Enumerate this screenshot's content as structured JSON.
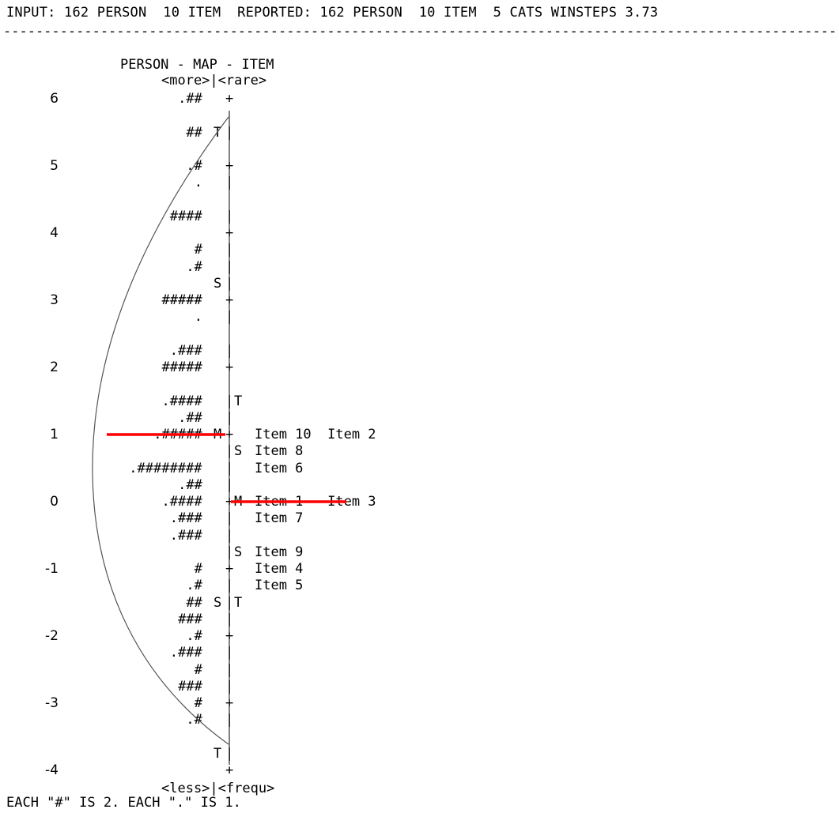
{
  "header": {
    "line": "INPUT: 162 PERSON  10 ITEM  REPORTED: 162 PERSON  10 ITEM  5 CATS WINSTEPS 3.73",
    "dashes": "--------------------------------------------------------------------------------------------------------------"
  },
  "map": {
    "title": "PERSON - MAP - ITEM",
    "top_labels": "<more>|<rare>",
    "bottom_labels": "<less>|<frequ>",
    "footer": "EACH \"#\" IS 2. EACH \".\" IS 1."
  },
  "chart_data": {
    "type": "table",
    "title": "PERSON - MAP - ITEM",
    "yticks": [
      6,
      5,
      4,
      3,
      2,
      1,
      0,
      -1,
      -2,
      -3,
      -4
    ],
    "ylim": [
      -4,
      6
    ],
    "rows": [
      {
        "y": 6.0,
        "persons": ".##",
        "pmark": "",
        "axis": "+",
        "imark": "",
        "items": ""
      },
      {
        "y": 5.5,
        "persons": "##",
        "pmark": "T",
        "axis": "|",
        "imark": "",
        "items": ""
      },
      {
        "y": 5.0,
        "persons": ".#",
        "pmark": "",
        "axis": "+",
        "imark": "",
        "items": ""
      },
      {
        "y": 4.75,
        "persons": ".",
        "pmark": "",
        "axis": "|",
        "imark": "",
        "items": ""
      },
      {
        "y": 4.25,
        "persons": "####",
        "pmark": "",
        "axis": "|",
        "imark": "",
        "items": ""
      },
      {
        "y": 4.0,
        "persons": "",
        "pmark": "",
        "axis": "+",
        "imark": "",
        "items": ""
      },
      {
        "y": 3.75,
        "persons": "#",
        "pmark": "",
        "axis": "|",
        "imark": "",
        "items": ""
      },
      {
        "y": 3.5,
        "persons": ".#",
        "pmark": "",
        "axis": "|",
        "imark": "",
        "items": ""
      },
      {
        "y": 3.25,
        "persons": "",
        "pmark": "S",
        "axis": "|",
        "imark": "",
        "items": ""
      },
      {
        "y": 3.0,
        "persons": "#####",
        "pmark": "",
        "axis": "+",
        "imark": "",
        "items": ""
      },
      {
        "y": 2.75,
        "persons": ".",
        "pmark": "",
        "axis": "|",
        "imark": "",
        "items": ""
      },
      {
        "y": 2.25,
        "persons": ".###",
        "pmark": "",
        "axis": "|",
        "imark": "",
        "items": ""
      },
      {
        "y": 2.0,
        "persons": "#####",
        "pmark": "",
        "axis": "+",
        "imark": "",
        "items": ""
      },
      {
        "y": 1.5,
        "persons": ".####",
        "pmark": "",
        "axis": "|",
        "imark": "T",
        "items": ""
      },
      {
        "y": 1.25,
        "persons": ".##",
        "pmark": "",
        "axis": "|",
        "imark": "",
        "items": ""
      },
      {
        "y": 1.0,
        "persons": ".#####",
        "pmark": "M",
        "axis": "+",
        "imark": "",
        "items": "Item 10  Item 2"
      },
      {
        "y": 0.75,
        "persons": "",
        "pmark": "",
        "axis": "|",
        "imark": "S",
        "items": "Item 8"
      },
      {
        "y": 0.5,
        "persons": ".########",
        "pmark": "",
        "axis": "|",
        "imark": "",
        "items": "Item 6"
      },
      {
        "y": 0.25,
        "persons": ".##",
        "pmark": "",
        "axis": "|",
        "imark": "",
        "items": ""
      },
      {
        "y": 0.0,
        "persons": ".####",
        "pmark": "",
        "axis": "+",
        "imark": "M",
        "items": "Item 1   Item 3"
      },
      {
        "y": -0.25,
        "persons": ".###",
        "pmark": "",
        "axis": "|",
        "imark": "",
        "items": "Item 7"
      },
      {
        "y": -0.5,
        "persons": ".###",
        "pmark": "",
        "axis": "|",
        "imark": "",
        "items": ""
      },
      {
        "y": -0.75,
        "persons": "",
        "pmark": "",
        "axis": "|",
        "imark": "S",
        "items": "Item 9"
      },
      {
        "y": -1.0,
        "persons": "#",
        "pmark": "",
        "axis": "+",
        "imark": "",
        "items": "Item 4"
      },
      {
        "y": -1.25,
        "persons": ".#",
        "pmark": "",
        "axis": "|",
        "imark": "",
        "items": "Item 5"
      },
      {
        "y": -1.5,
        "persons": "##",
        "pmark": "S",
        "axis": "|",
        "imark": "T",
        "items": ""
      },
      {
        "y": -1.75,
        "persons": "###",
        "pmark": "",
        "axis": "|",
        "imark": "",
        "items": ""
      },
      {
        "y": -2.0,
        "persons": ".#",
        "pmark": "",
        "axis": "+",
        "imark": "",
        "items": ""
      },
      {
        "y": -2.25,
        "persons": ".###",
        "pmark": "",
        "axis": "|",
        "imark": "",
        "items": ""
      },
      {
        "y": -2.5,
        "persons": "#",
        "pmark": "",
        "axis": "|",
        "imark": "",
        "items": ""
      },
      {
        "y": -2.75,
        "persons": "###",
        "pmark": "",
        "axis": "|",
        "imark": "",
        "items": ""
      },
      {
        "y": -3.0,
        "persons": "#",
        "pmark": "",
        "axis": "+",
        "imark": "",
        "items": ""
      },
      {
        "y": -3.25,
        "persons": ".#",
        "pmark": "",
        "axis": "|",
        "imark": "",
        "items": ""
      },
      {
        "y": -3.75,
        "persons": "",
        "pmark": "T",
        "axis": "|",
        "imark": "",
        "items": ""
      },
      {
        "y": -4.0,
        "persons": "",
        "pmark": "",
        "axis": "+",
        "imark": "",
        "items": ""
      }
    ],
    "annotations": [
      {
        "kind": "red-line",
        "y": 1.0
      },
      {
        "kind": "red-line",
        "y": 0.0
      },
      {
        "kind": "bell-curve"
      }
    ],
    "colors": {
      "text": "#000000",
      "annotation": "#ff0000",
      "curve": "#555555"
    }
  }
}
